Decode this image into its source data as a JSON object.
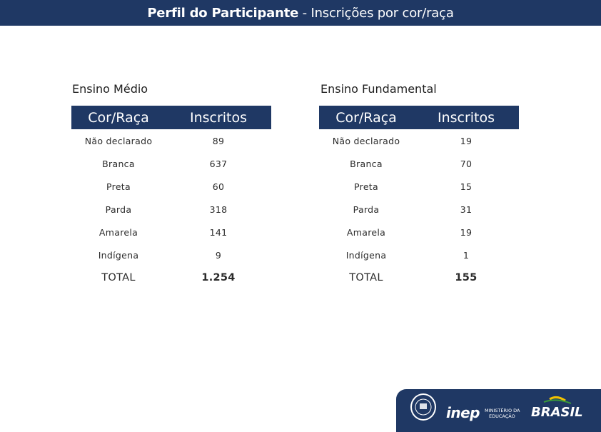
{
  "header": {
    "title_bold": "Perfil do Participante",
    "title_rest": " - Inscrições por cor/raça"
  },
  "colors": {
    "header_bg": "#1f3864",
    "table_header_bg": "#1f3864",
    "footer_bg": "#1f3864"
  },
  "tables": [
    {
      "title": "Ensino Médio",
      "headers": [
        "Cor/Raça",
        "Inscritos"
      ],
      "rows": [
        [
          "Não declarado",
          "89"
        ],
        [
          "Branca",
          "637"
        ],
        [
          "Preta",
          "60"
        ],
        [
          "Parda",
          "318"
        ],
        [
          "Amarela",
          "141"
        ],
        [
          "Indígena",
          "9"
        ]
      ],
      "total": [
        "TOTAL",
        "1.254"
      ]
    },
    {
      "title": "Ensino Fundamental",
      "headers": [
        "Cor/Raça",
        "Inscritos"
      ],
      "rows": [
        [
          "Não declarado",
          "19"
        ],
        [
          "Branca",
          "70"
        ],
        [
          "Preta",
          "15"
        ],
        [
          "Parda",
          "31"
        ],
        [
          "Amarela",
          "19"
        ],
        [
          "Indígena",
          "1"
        ]
      ],
      "total": [
        "TOTAL",
        "155"
      ]
    }
  ],
  "footer": {
    "logos": [
      "inep-anniversary-badge",
      "inep-logo",
      "ministerio-educacao-logo",
      "brasil-governo-federal-logo"
    ],
    "inep_text": "inep",
    "mec_line1": "MINISTÉRIO DA",
    "mec_line2": "EDUCAÇÃO",
    "brasil_text": "BRASIL"
  }
}
